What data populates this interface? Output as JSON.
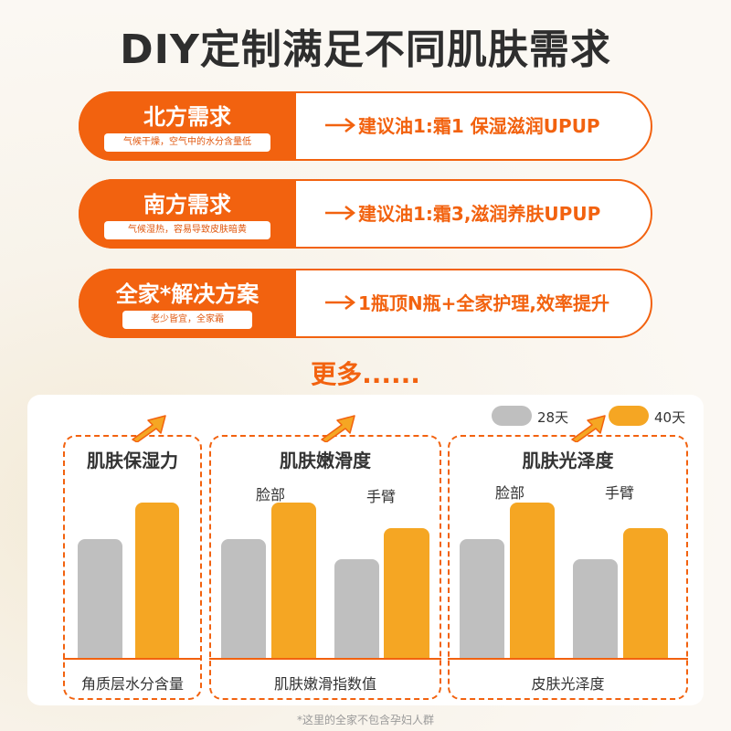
{
  "title": "DIY定制满足不同肌肤需求",
  "rows": [
    {
      "title": "北方需求",
      "subtitle": "气候干燥，空气中的水分含量低",
      "text": "建议油1:霜1 保湿滋润UPUP"
    },
    {
      "title": "南方需求",
      "subtitle": "气候湿热，容易导致皮肤暗黄",
      "text": "建议油1:霜3,滋润养肤UPUP"
    },
    {
      "title": "全家*解决方案",
      "subtitle": "老少皆宜，全家霜",
      "text": "1瓶顶N瓶+全家护理,效率提升"
    }
  ],
  "more": "更多......",
  "legend": [
    {
      "label": "28天",
      "color": "#bfbfbf"
    },
    {
      "label": "40天",
      "color": "#f5a623"
    }
  ],
  "panels": [
    {
      "title": "肌肤保湿力",
      "bottom": "角质层水分含量",
      "groups": [
        {
          "label": "",
          "values": [
            0.52,
            0.7
          ]
        }
      ]
    },
    {
      "title": "肌肤嫩滑度",
      "bottom": "肌肤嫩滑指数值",
      "groups": [
        {
          "label": "脸部",
          "values": [
            0.52,
            0.7
          ]
        },
        {
          "label": "手臂",
          "values": [
            0.43,
            0.58
          ]
        }
      ]
    },
    {
      "title": "肌肤光泽度",
      "bottom": "皮肤光泽度",
      "groups": [
        {
          "label": "脸部",
          "values": [
            0.52,
            0.7
          ]
        },
        {
          "label": "手臂",
          "values": [
            0.43,
            0.58
          ]
        }
      ]
    }
  ],
  "footnote": "*这里的全家不包含孕妇人群",
  "colors": {
    "accent": "#f2620f",
    "gray": "#bfbfbf",
    "orange": "#f5a623"
  }
}
